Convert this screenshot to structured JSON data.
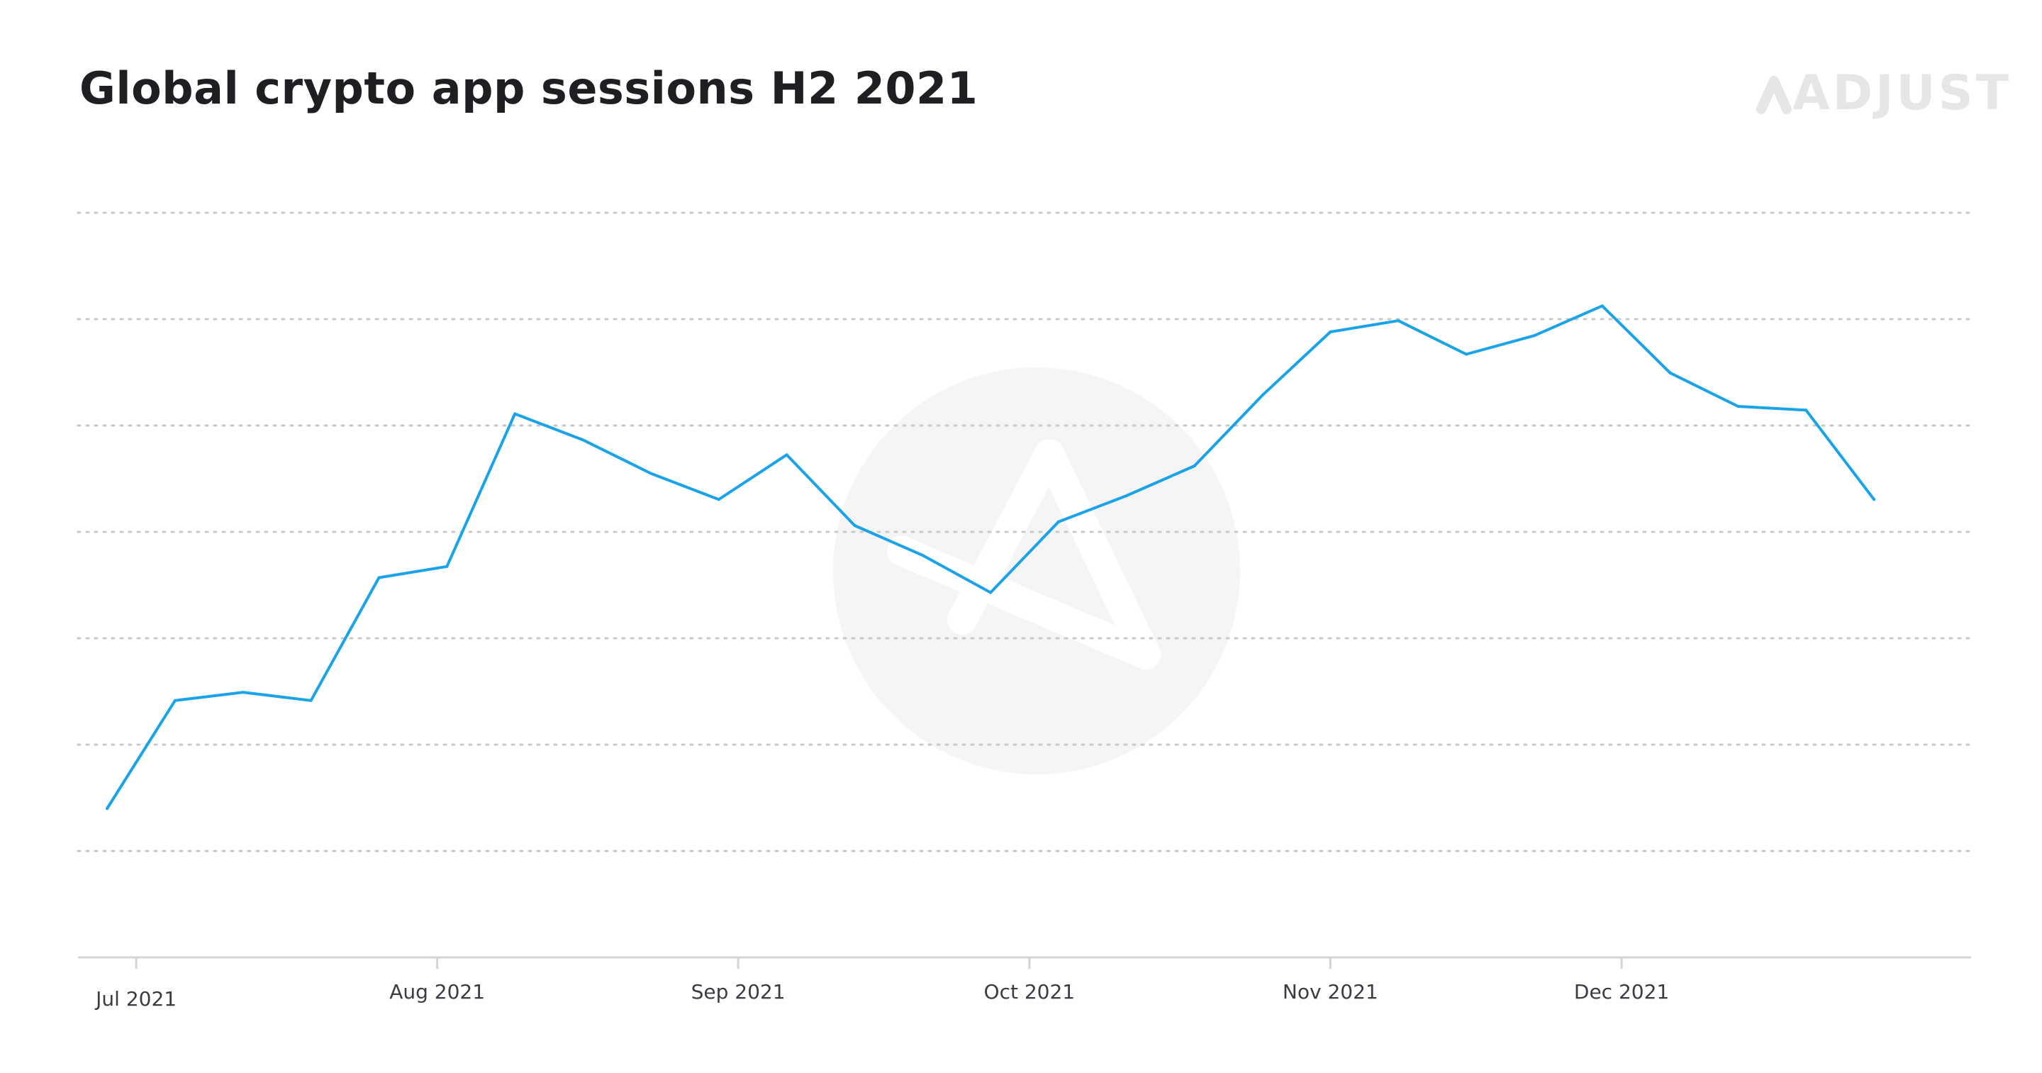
{
  "chart_data": {
    "type": "line",
    "title": "Global crypto app sessions H2 2021",
    "xlabel": "",
    "ylabel": "",
    "grid": true,
    "y_axis_labels_shown": false,
    "y_gridlines": 7,
    "x": [
      "2021-06-28",
      "2021-07-05",
      "2021-07-12",
      "2021-07-19",
      "2021-07-26",
      "2021-08-02",
      "2021-08-09",
      "2021-08-16",
      "2021-08-23",
      "2021-08-30",
      "2021-09-06",
      "2021-09-13",
      "2021-09-20",
      "2021-09-27",
      "2021-10-04",
      "2021-10-11",
      "2021-10-18",
      "2021-10-25",
      "2021-11-01",
      "2021-11-08",
      "2021-11-15",
      "2021-11-22",
      "2021-11-29",
      "2021-12-06",
      "2021-12-13",
      "2021-12-20",
      "2021-12-27"
    ],
    "series": [
      {
        "color": "#1aa3e8",
        "values": [
          1.0,
          2.45,
          2.56,
          2.45,
          4.1,
          4.25,
          6.3,
          5.95,
          5.5,
          5.15,
          5.75,
          4.8,
          4.4,
          3.9,
          4.85,
          5.2,
          5.6,
          6.55,
          7.4,
          7.55,
          7.1,
          7.35,
          7.75,
          6.85,
          6.4,
          6.35,
          5.15
        ]
      }
    ],
    "x_tick_labels": [
      "Jul 2021",
      "Aug 2021",
      "Sep 2021",
      "Oct 2021",
      "Nov 2021",
      "Dec 2021"
    ],
    "x_tick_dates": [
      "2021-07-01",
      "2021-08-01",
      "2021-09-01",
      "2021-10-01",
      "2021-11-01",
      "2021-12-01"
    ],
    "ylim": [
      -1.0,
      9.0
    ],
    "xlim": [
      "2021-06-25",
      "2022-01-06"
    ]
  },
  "brand": {
    "logo_text": "ADJUST",
    "logo_color": "#e6e6e6",
    "watermark_color": "#f5f5f5"
  }
}
